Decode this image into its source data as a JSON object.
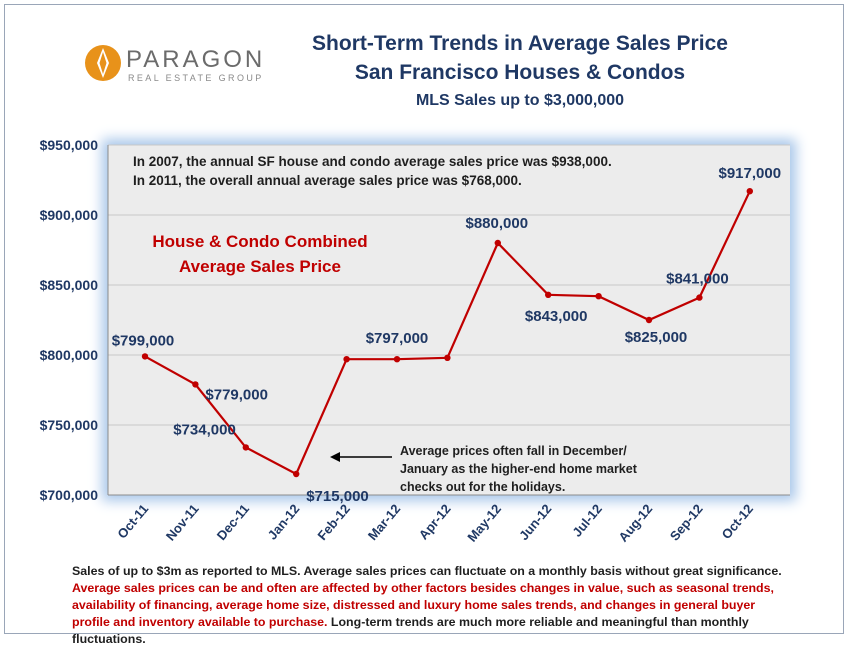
{
  "logo": {
    "name": "PARAGON",
    "subtitle": "REAL ESTATE GROUP"
  },
  "titles": {
    "line1": "Short-Term Trends in Average Sales Price",
    "line2": "San Francisco  Houses & Condos",
    "line3": "MLS Sales up to $3,000,000"
  },
  "notes": {
    "line1": "In 2007, the annual SF house and condo average sales price was $938,000.",
    "line2": "In 2011, the overall annual average sales price was $768,000."
  },
  "series_label": {
    "line1": "House & Condo Combined",
    "line2": "Average Sales Price"
  },
  "annotation": {
    "line1": "Average prices often fall in December/",
    "line2": "January as the higher-end home market",
    "line3": "checks out for the holidays."
  },
  "footer": {
    "black1": "Sales of up to $3m as reported to MLS. Average sales prices can fluctuate on a monthly basis without great significance.",
    "red": "Average sales prices can be and often are affected by other factors besides changes in value, such as seasonal trends, availability of financing, average home size, distressed and luxury home sales trends, and changes in general buyer profile and inventory available to purchase.",
    "black2": "Long-term trends are much more reliable and meaningful than monthly fluctuations."
  },
  "colors": {
    "line": "#c00000",
    "text": "#1f3864",
    "panel": "#ececec",
    "glow": "#a9c7ea"
  },
  "chart_data": {
    "type": "line",
    "categories": [
      "Oct-11",
      "Nov-11",
      "Dec-11",
      "Jan-12",
      "Feb-12",
      "Mar-12",
      "Apr-12",
      "May-12",
      "Jun-12",
      "Jul-12",
      "Aug-12",
      "Sep-12",
      "Oct-12"
    ],
    "series": [
      {
        "values": [
          799000,
          779000,
          734000,
          715000,
          797000,
          797000,
          798000,
          880000,
          843000,
          842000,
          825000,
          841000,
          917000
        ]
      }
    ],
    "data_labels": [
      "$799,000",
      "$779,000",
      "$734,000",
      "$715,000",
      "",
      "$797,000",
      "",
      "$880,000",
      "$843,000",
      "",
      "$825,000",
      "$841,000",
      "$917,000"
    ],
    "ylim": [
      700000,
      950000
    ],
    "yticks": [
      700000,
      750000,
      800000,
      850000,
      900000,
      950000
    ],
    "ytick_labels": [
      "$700,000",
      "$750,000",
      "$800,000",
      "$850,000",
      "$900,000",
      "$950,000"
    ],
    "grid": true,
    "legend": "none"
  }
}
